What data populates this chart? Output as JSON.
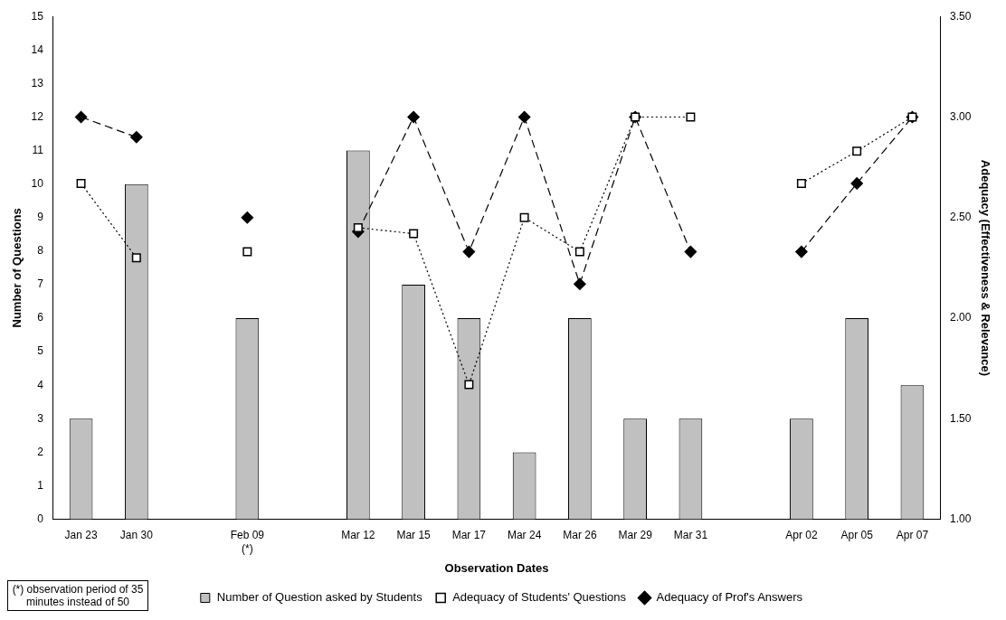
{
  "chart_data": {
    "type": "bar",
    "xlabel": "Observation Dates",
    "ylabel": "Number of Questions",
    "y2label": "Adequacy (Effectiveness & Relevance)",
    "categories": [
      "Jan 23",
      "Jan 30",
      null,
      "Feb 09\n(*)",
      null,
      "Mar 12",
      "Mar 15",
      "Mar 17",
      "Mar 24",
      "Mar 26",
      "Mar 29",
      "Mar 31",
      null,
      "Apr 02",
      "Apr 05",
      "Apr 07"
    ],
    "series": [
      {
        "name": "Number of Question asked by Students",
        "color": "#c0c0c0",
        "values": [
          3,
          10,
          null,
          6,
          null,
          11,
          7,
          6,
          2,
          6,
          3,
          3,
          null,
          3,
          6,
          4
        ]
      },
      {
        "name": "Adequacy of Students' Questions",
        "type": "line",
        "axis": "y2",
        "color": "#000000",
        "marker": "square",
        "line_style": "dotted",
        "values": [
          2.67,
          2.3,
          null,
          2.33,
          null,
          2.45,
          2.42,
          1.67,
          2.5,
          2.33,
          3.0,
          3.0,
          null,
          2.67,
          2.83,
          3.0
        ]
      },
      {
        "name": "Adequacy of Prof's Answers",
        "type": "line",
        "axis": "y2",
        "color": "#000000",
        "marker": "diamond",
        "line_style": "dashed",
        "values": [
          3.0,
          2.9,
          null,
          2.5,
          null,
          2.43,
          3.0,
          2.33,
          3.0,
          2.17,
          3.0,
          2.33,
          null,
          2.33,
          2.67,
          3.0
        ]
      }
    ],
    "ylim": [
      0,
      15
    ],
    "yticks": [
      0,
      1,
      2,
      3,
      4,
      5,
      6,
      7,
      8,
      9,
      10,
      11,
      12,
      13,
      14,
      15
    ],
    "y2lim": [
      1,
      3.5
    ],
    "y2ticks": [
      {
        "value": 1,
        "label": "1.00"
      },
      {
        "value": 1.5,
        "label": "1.50"
      },
      {
        "value": 2,
        "label": "2.00"
      },
      {
        "value": 2.5,
        "label": "2.50"
      },
      {
        "value": 3,
        "label": "3.00"
      },
      {
        "value": 3.5,
        "label": "3.50"
      }
    ],
    "grid": false,
    "legend": "bottom",
    "annotations": [
      "(*) observation period of 35 minutes instead of 50"
    ]
  }
}
